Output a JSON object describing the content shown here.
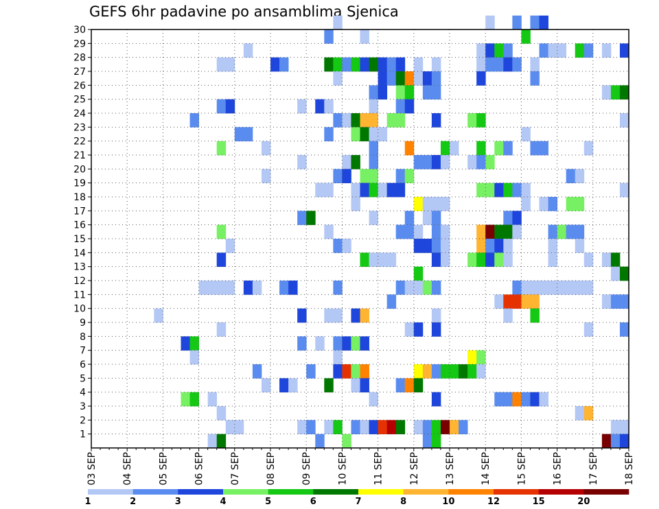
{
  "chart_data": {
    "type": "heatmap",
    "title": "GEFS 6hr padavine po ansamblima Sjenica",
    "xlabel": "",
    "ylabel": "",
    "x_ticks": [
      "03 SEP",
      "04 SEP",
      "05 SEP",
      "06 SEP",
      "07 SEP",
      "08 SEP",
      "09 SEP",
      "10 SEP",
      "11 SEP",
      "12 SEP",
      "13 SEP",
      "14 SEP",
      "15 SEP",
      "16 SEP",
      "17 SEP",
      "18 SEP"
    ],
    "y_ticks": [
      "1",
      "2",
      "3",
      "4",
      "5",
      "6",
      "7",
      "8",
      "9",
      "10",
      "11",
      "12",
      "13",
      "14",
      "15",
      "16",
      "17",
      "18",
      "19",
      "20",
      "21",
      "22",
      "23",
      "24",
      "25",
      "26",
      "27",
      "28",
      "29",
      "30"
    ],
    "ylim": [
      0,
      30
    ],
    "grid": true,
    "steps_per_day": 4,
    "legend": {
      "placement": "bottom",
      "labels": [
        "1",
        "2",
        "3",
        "4",
        "5",
        "6",
        "7",
        "8",
        "10",
        "12",
        "15",
        "20"
      ],
      "colors": [
        "#b4c8f5",
        "#5a8cf0",
        "#1e46dc",
        "#78f064",
        "#14c814",
        "#007800",
        "#ffff00",
        "#ffb432",
        "#ff8200",
        "#e63200",
        "#b40000",
        "#780000"
      ]
    },
    "cells": [
      [
        30,
        27,
        0
      ],
      [
        30,
        44,
        0
      ],
      [
        30,
        47,
        1
      ],
      [
        30,
        49,
        1
      ],
      [
        30,
        50,
        2
      ],
      [
        29,
        26,
        1
      ],
      [
        29,
        30,
        0
      ],
      [
        29,
        48,
        4
      ],
      [
        28,
        17,
        0
      ],
      [
        28,
        43,
        0
      ],
      [
        28,
        44,
        2
      ],
      [
        28,
        45,
        4
      ],
      [
        28,
        46,
        1
      ],
      [
        28,
        50,
        1
      ],
      [
        28,
        51,
        0
      ],
      [
        28,
        52,
        0
      ],
      [
        28,
        54,
        4
      ],
      [
        28,
        55,
        1
      ],
      [
        28,
        57,
        0
      ],
      [
        28,
        59,
        2
      ],
      [
        27,
        14,
        0
      ],
      [
        27,
        15,
        0
      ],
      [
        27,
        20,
        2
      ],
      [
        27,
        21,
        1
      ],
      [
        27,
        26,
        5
      ],
      [
        27,
        27,
        4
      ],
      [
        27,
        28,
        1
      ],
      [
        27,
        29,
        4
      ],
      [
        27,
        30,
        2
      ],
      [
        27,
        31,
        5
      ],
      [
        27,
        32,
        2
      ],
      [
        27,
        33,
        1
      ],
      [
        27,
        34,
        2
      ],
      [
        27,
        36,
        0
      ],
      [
        27,
        38,
        0
      ],
      [
        27,
        43,
        0
      ],
      [
        27,
        44,
        1
      ],
      [
        27,
        45,
        1
      ],
      [
        27,
        46,
        2
      ],
      [
        27,
        47,
        1
      ],
      [
        27,
        49,
        0
      ],
      [
        26,
        27,
        0
      ],
      [
        26,
        32,
        2
      ],
      [
        26,
        33,
        1
      ],
      [
        26,
        34,
        5
      ],
      [
        26,
        35,
        8
      ],
      [
        26,
        36,
        0
      ],
      [
        26,
        37,
        2
      ],
      [
        26,
        38,
        1
      ],
      [
        26,
        43,
        2
      ],
      [
        26,
        49,
        1
      ],
      [
        25,
        31,
        1
      ],
      [
        25,
        32,
        2
      ],
      [
        25,
        34,
        3
      ],
      [
        25,
        35,
        4
      ],
      [
        25,
        37,
        1
      ],
      [
        25,
        38,
        1
      ],
      [
        25,
        57,
        0
      ],
      [
        25,
        58,
        4
      ],
      [
        25,
        59,
        5
      ],
      [
        24,
        14,
        1
      ],
      [
        24,
        15,
        2
      ],
      [
        24,
        23,
        0
      ],
      [
        24,
        25,
        2
      ],
      [
        24,
        26,
        0
      ],
      [
        24,
        31,
        0
      ],
      [
        24,
        34,
        1
      ],
      [
        24,
        35,
        2
      ],
      [
        23,
        11,
        1
      ],
      [
        23,
        27,
        1
      ],
      [
        23,
        28,
        0
      ],
      [
        23,
        29,
        5
      ],
      [
        23,
        30,
        7
      ],
      [
        23,
        31,
        7
      ],
      [
        23,
        33,
        3
      ],
      [
        23,
        34,
        3
      ],
      [
        23,
        38,
        2
      ],
      [
        23,
        42,
        3
      ],
      [
        23,
        43,
        4
      ],
      [
        23,
        59,
        0
      ],
      [
        22,
        16,
        1
      ],
      [
        22,
        17,
        1
      ],
      [
        22,
        26,
        1
      ],
      [
        22,
        29,
        3
      ],
      [
        22,
        30,
        5
      ],
      [
        22,
        31,
        0
      ],
      [
        22,
        32,
        0
      ],
      [
        22,
        48,
        0
      ],
      [
        21,
        14,
        3
      ],
      [
        21,
        19,
        0
      ],
      [
        21,
        31,
        1
      ],
      [
        21,
        35,
        8
      ],
      [
        21,
        39,
        4
      ],
      [
        21,
        40,
        0
      ],
      [
        21,
        43,
        4
      ],
      [
        21,
        45,
        3
      ],
      [
        21,
        46,
        1
      ],
      [
        21,
        49,
        1
      ],
      [
        21,
        50,
        1
      ],
      [
        21,
        55,
        0
      ],
      [
        20,
        23,
        0
      ],
      [
        20,
        28,
        0
      ],
      [
        20,
        29,
        5
      ],
      [
        20,
        31,
        1
      ],
      [
        20,
        36,
        1
      ],
      [
        20,
        37,
        1
      ],
      [
        20,
        38,
        2
      ],
      [
        20,
        39,
        0
      ],
      [
        20,
        42,
        0
      ],
      [
        20,
        43,
        1
      ],
      [
        20,
        44,
        3
      ],
      [
        19,
        19,
        0
      ],
      [
        19,
        27,
        1
      ],
      [
        19,
        28,
        2
      ],
      [
        19,
        30,
        3
      ],
      [
        19,
        31,
        3
      ],
      [
        19,
        34,
        1
      ],
      [
        19,
        35,
        3
      ],
      [
        19,
        53,
        1
      ],
      [
        19,
        54,
        0
      ],
      [
        18,
        25,
        0
      ],
      [
        18,
        26,
        0
      ],
      [
        18,
        29,
        0
      ],
      [
        18,
        30,
        2
      ],
      [
        18,
        31,
        4
      ],
      [
        18,
        32,
        0
      ],
      [
        18,
        33,
        2
      ],
      [
        18,
        34,
        2
      ],
      [
        18,
        43,
        3
      ],
      [
        18,
        44,
        3
      ],
      [
        18,
        45,
        2
      ],
      [
        18,
        46,
        4
      ],
      [
        18,
        47,
        1
      ],
      [
        18,
        48,
        0
      ],
      [
        18,
        59,
        0
      ],
      [
        17,
        29,
        0
      ],
      [
        17,
        36,
        6
      ],
      [
        17,
        37,
        0
      ],
      [
        17,
        38,
        0
      ],
      [
        17,
        39,
        0
      ],
      [
        17,
        48,
        0
      ],
      [
        17,
        50,
        0
      ],
      [
        17,
        51,
        1
      ],
      [
        17,
        53,
        3
      ],
      [
        17,
        54,
        3
      ],
      [
        16,
        23,
        1
      ],
      [
        16,
        24,
        5
      ],
      [
        16,
        31,
        0
      ],
      [
        16,
        35,
        1
      ],
      [
        16,
        37,
        0
      ],
      [
        16,
        38,
        1
      ],
      [
        16,
        46,
        1
      ],
      [
        16,
        47,
        2
      ],
      [
        15,
        14,
        3
      ],
      [
        15,
        26,
        0
      ],
      [
        15,
        34,
        1
      ],
      [
        15,
        35,
        1
      ],
      [
        15,
        36,
        0
      ],
      [
        15,
        38,
        1
      ],
      [
        15,
        39,
        0
      ],
      [
        15,
        43,
        7
      ],
      [
        15,
        44,
        11
      ],
      [
        15,
        45,
        5
      ],
      [
        15,
        46,
        5
      ],
      [
        15,
        47,
        0
      ],
      [
        15,
        51,
        1
      ],
      [
        15,
        52,
        3
      ],
      [
        15,
        53,
        1
      ],
      [
        15,
        54,
        1
      ],
      [
        14,
        15,
        0
      ],
      [
        14,
        27,
        1
      ],
      [
        14,
        28,
        0
      ],
      [
        14,
        36,
        2
      ],
      [
        14,
        37,
        2
      ],
      [
        14,
        38,
        1
      ],
      [
        14,
        39,
        0
      ],
      [
        14,
        43,
        7
      ],
      [
        14,
        44,
        1
      ],
      [
        14,
        45,
        2
      ],
      [
        14,
        46,
        0
      ],
      [
        14,
        51,
        0
      ],
      [
        14,
        54,
        0
      ],
      [
        13,
        14,
        2
      ],
      [
        13,
        30,
        4
      ],
      [
        13,
        31,
        0
      ],
      [
        13,
        32,
        0
      ],
      [
        13,
        33,
        0
      ],
      [
        13,
        38,
        2
      ],
      [
        13,
        39,
        0
      ],
      [
        13,
        42,
        3
      ],
      [
        13,
        43,
        4
      ],
      [
        13,
        44,
        2
      ],
      [
        13,
        45,
        3
      ],
      [
        13,
        46,
        0
      ],
      [
        13,
        51,
        0
      ],
      [
        13,
        55,
        0
      ],
      [
        13,
        57,
        0
      ],
      [
        13,
        58,
        5
      ],
      [
        12,
        36,
        4
      ],
      [
        12,
        58,
        0
      ],
      [
        12,
        59,
        5
      ],
      [
        11,
        12,
        0
      ],
      [
        11,
        13,
        0
      ],
      [
        11,
        14,
        0
      ],
      [
        11,
        15,
        0
      ],
      [
        11,
        17,
        2
      ],
      [
        11,
        18,
        0
      ],
      [
        11,
        21,
        1
      ],
      [
        11,
        22,
        2
      ],
      [
        11,
        27,
        1
      ],
      [
        11,
        34,
        1
      ],
      [
        11,
        35,
        0
      ],
      [
        11,
        36,
        0
      ],
      [
        11,
        37,
        3
      ],
      [
        11,
        38,
        1
      ],
      [
        11,
        47,
        1
      ],
      [
        11,
        48,
        0
      ],
      [
        11,
        49,
        0
      ],
      [
        11,
        50,
        0
      ],
      [
        11,
        51,
        0
      ],
      [
        11,
        52,
        0
      ],
      [
        11,
        53,
        0
      ],
      [
        11,
        54,
        0
      ],
      [
        11,
        55,
        0
      ],
      [
        10,
        33,
        1
      ],
      [
        10,
        45,
        0
      ],
      [
        10,
        46,
        9
      ],
      [
        10,
        47,
        9
      ],
      [
        10,
        48,
        7
      ],
      [
        10,
        49,
        7
      ],
      [
        10,
        57,
        0
      ],
      [
        10,
        58,
        1
      ],
      [
        10,
        59,
        1
      ],
      [
        9,
        7,
        0
      ],
      [
        9,
        23,
        2
      ],
      [
        9,
        26,
        0
      ],
      [
        9,
        27,
        0
      ],
      [
        9,
        29,
        2
      ],
      [
        9,
        30,
        7
      ],
      [
        9,
        38,
        0
      ],
      [
        9,
        46,
        0
      ],
      [
        9,
        49,
        4
      ],
      [
        8,
        14,
        0
      ],
      [
        8,
        35,
        0
      ],
      [
        8,
        36,
        2
      ],
      [
        8,
        38,
        2
      ],
      [
        8,
        55,
        0
      ],
      [
        8,
        59,
        1
      ],
      [
        7,
        10,
        2
      ],
      [
        7,
        11,
        4
      ],
      [
        7,
        23,
        1
      ],
      [
        7,
        25,
        0
      ],
      [
        7,
        27,
        1
      ],
      [
        7,
        28,
        2
      ],
      [
        7,
        29,
        3
      ],
      [
        7,
        30,
        2
      ],
      [
        6,
        11,
        0
      ],
      [
        6,
        27,
        0
      ],
      [
        6,
        42,
        6
      ],
      [
        6,
        43,
        3
      ],
      [
        5,
        18,
        1
      ],
      [
        5,
        24,
        1
      ],
      [
        5,
        27,
        2
      ],
      [
        5,
        28,
        9
      ],
      [
        5,
        29,
        3
      ],
      [
        5,
        30,
        8
      ],
      [
        5,
        36,
        6
      ],
      [
        5,
        37,
        7
      ],
      [
        5,
        38,
        1
      ],
      [
        5,
        39,
        4
      ],
      [
        5,
        40,
        4
      ],
      [
        5,
        41,
        5
      ],
      [
        5,
        42,
        4
      ],
      [
        5,
        43,
        0
      ],
      [
        4,
        19,
        0
      ],
      [
        4,
        21,
        2
      ],
      [
        4,
        22,
        0
      ],
      [
        4,
        26,
        5
      ],
      [
        4,
        29,
        0
      ],
      [
        4,
        30,
        2
      ],
      [
        4,
        34,
        1
      ],
      [
        4,
        35,
        8
      ],
      [
        4,
        36,
        5
      ],
      [
        3,
        10,
        3
      ],
      [
        3,
        11,
        4
      ],
      [
        3,
        13,
        0
      ],
      [
        3,
        31,
        0
      ],
      [
        3,
        38,
        2
      ],
      [
        3,
        45,
        1
      ],
      [
        3,
        46,
        1
      ],
      [
        3,
        47,
        8
      ],
      [
        3,
        48,
        1
      ],
      [
        3,
        49,
        2
      ],
      [
        3,
        50,
        0
      ],
      [
        2,
        14,
        0
      ],
      [
        2,
        54,
        0
      ],
      [
        2,
        55,
        7
      ],
      [
        1,
        15,
        0
      ],
      [
        1,
        16,
        0
      ],
      [
        1,
        23,
        0
      ],
      [
        1,
        24,
        1
      ],
      [
        1,
        26,
        0
      ],
      [
        1,
        27,
        4
      ],
      [
        1,
        29,
        1
      ],
      [
        1,
        30,
        0
      ],
      [
        1,
        31,
        2
      ],
      [
        1,
        32,
        9
      ],
      [
        1,
        33,
        10
      ],
      [
        1,
        34,
        5
      ],
      [
        1,
        36,
        0
      ],
      [
        1,
        37,
        1
      ],
      [
        1,
        38,
        4
      ],
      [
        1,
        39,
        11
      ],
      [
        1,
        40,
        7
      ],
      [
        1,
        41,
        1
      ],
      [
        1,
        58,
        0
      ],
      [
        1,
        59,
        0
      ],
      [
        0,
        13,
        0
      ],
      [
        0,
        14,
        5
      ],
      [
        0,
        25,
        1
      ],
      [
        0,
        28,
        3
      ],
      [
        0,
        37,
        1
      ],
      [
        0,
        38,
        4
      ],
      [
        0,
        57,
        11
      ],
      [
        0,
        58,
        1
      ],
      [
        0,
        59,
        2
      ]
    ]
  }
}
